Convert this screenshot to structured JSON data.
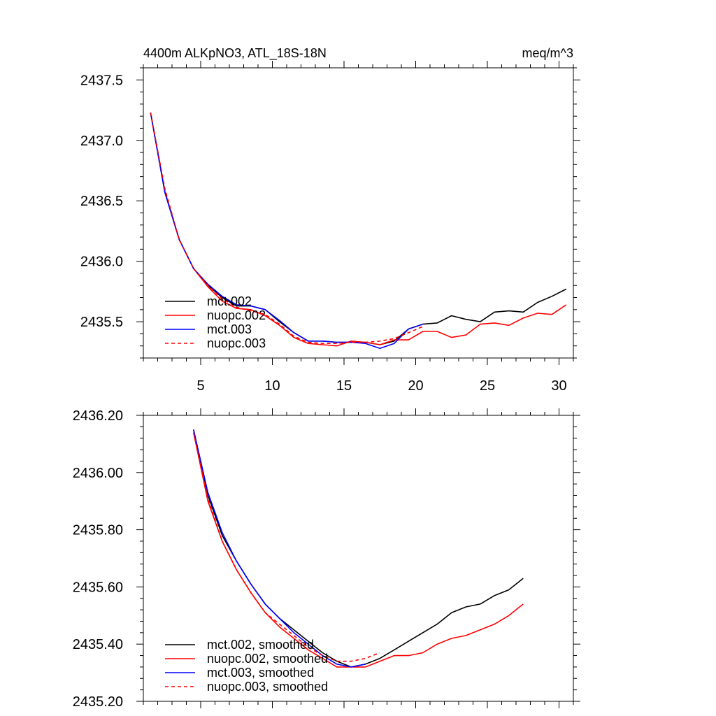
{
  "chart_data": [
    {
      "type": "line",
      "title_left": "4400m ALKpNO3, ATL_18S-18N",
      "title_right": "meq/m^3",
      "xlabel": "",
      "ylabel": "",
      "xlim": [
        1,
        31
      ],
      "ylim": [
        2435.2,
        2437.6
      ],
      "xticks": [
        5,
        10,
        15,
        20,
        25,
        30
      ],
      "xtick_labels": [
        "5",
        "10",
        "15",
        "20",
        "25",
        "30"
      ],
      "yticks": [
        2435.5,
        2436.0,
        2436.5,
        2437.0,
        2437.5
      ],
      "ytick_labels": [
        "2435.5",
        "2436.0",
        "2436.5",
        "2437.0",
        "2437.5"
      ],
      "legend_position": "bottom-left",
      "series": [
        {
          "name": "mct.002",
          "color": "#000000",
          "style": "solid",
          "x": [
            1.5,
            2.5,
            3.5,
            4.5,
            5.5,
            6.5,
            7.5,
            8.5,
            9.5,
            10.5,
            11.5,
            12.5,
            13.5,
            14.5,
            15.5,
            16.5,
            17.5,
            18.5,
            19.5,
            20.5,
            21.5,
            22.5,
            23.5,
            24.5,
            25.5,
            26.5,
            27.5,
            28.5,
            29.5,
            30.5
          ],
          "values": [
            2437.23,
            2436.57,
            2436.18,
            2435.94,
            2435.8,
            2435.7,
            2435.63,
            2435.63,
            2435.6,
            2435.5,
            2435.41,
            2435.34,
            2435.34,
            2435.33,
            2435.33,
            2435.33,
            2435.31,
            2435.34,
            2435.44,
            2435.48,
            2435.49,
            2435.55,
            2435.52,
            2435.5,
            2435.58,
            2435.59,
            2435.58,
            2435.66,
            2435.71,
            2435.77
          ]
        },
        {
          "name": "nuopc.002",
          "color": "#ff0000",
          "style": "solid",
          "x": [
            1.5,
            2.5,
            3.5,
            4.5,
            5.5,
            6.5,
            7.5,
            8.5,
            9.5,
            10.5,
            11.5,
            12.5,
            13.5,
            14.5,
            15.5,
            16.5,
            17.5,
            18.5,
            19.5,
            20.5,
            21.5,
            22.5,
            23.5,
            24.5,
            25.5,
            26.5,
            27.5,
            28.5,
            29.5,
            30.5
          ],
          "values": [
            2437.23,
            2436.58,
            2436.18,
            2435.94,
            2435.79,
            2435.67,
            2435.61,
            2435.6,
            2435.55,
            2435.47,
            2435.37,
            2435.32,
            2435.31,
            2435.3,
            2435.34,
            2435.33,
            2435.31,
            2435.35,
            2435.35,
            2435.42,
            2435.42,
            2435.37,
            2435.39,
            2435.48,
            2435.49,
            2435.47,
            2435.53,
            2435.57,
            2435.56,
            2435.64
          ]
        },
        {
          "name": "mct.003",
          "color": "#0000ff",
          "style": "solid",
          "x": [
            1.5,
            2.5,
            3.5,
            4.5,
            5.5,
            6.5,
            7.5,
            8.5,
            9.5,
            10.5,
            11.5,
            12.5,
            13.5,
            14.5,
            15.5,
            16.5,
            17.5,
            18.5,
            19.5,
            20.5
          ],
          "values": [
            2437.23,
            2436.57,
            2436.18,
            2435.94,
            2435.81,
            2435.71,
            2435.64,
            2435.63,
            2435.6,
            2435.51,
            2435.41,
            2435.34,
            2435.34,
            2435.33,
            2435.33,
            2435.32,
            2435.28,
            2435.32,
            2435.44,
            2435.48
          ]
        },
        {
          "name": "nuopc.003",
          "color": "#ff0000",
          "style": "dashed",
          "x": [
            1.5,
            2.5,
            3.5,
            4.5,
            5.5,
            6.5,
            7.5,
            8.5,
            9.5,
            10.5,
            11.5,
            12.5,
            13.5,
            14.5,
            15.5,
            16.5,
            17.5,
            18.5,
            19.5,
            20.5
          ],
          "values": [
            2437.23,
            2436.6,
            2436.18,
            2435.94,
            2435.8,
            2435.69,
            2435.62,
            2435.59,
            2435.56,
            2435.48,
            2435.38,
            2435.33,
            2435.32,
            2435.32,
            2435.33,
            2435.33,
            2435.34,
            2435.36,
            2435.41,
            2435.46
          ]
        }
      ]
    },
    {
      "type": "line",
      "title_left": "",
      "title_right": "",
      "xlabel": "",
      "ylabel": "",
      "xlim": [
        1,
        31
      ],
      "ylim": [
        2435.2,
        2436.2
      ],
      "xticks": [
        5,
        10,
        15,
        20,
        25,
        30
      ],
      "xtick_labels": [],
      "yticks": [
        2435.2,
        2435.4,
        2435.6,
        2435.8,
        2436.0,
        2436.2
      ],
      "ytick_labels": [
        "2435.20",
        "2435.40",
        "2435.60",
        "2435.80",
        "2436.00",
        "2436.20"
      ],
      "legend_position": "bottom-left",
      "series": [
        {
          "name": "mct.002, smoothed",
          "color": "#000000",
          "style": "solid",
          "x": [
            4.5,
            5.5,
            6.5,
            7.5,
            8.5,
            9.5,
            10.5,
            11.5,
            12.5,
            13.5,
            14.5,
            15.5,
            16.5,
            17.5,
            18.5,
            19.5,
            20.5,
            21.5,
            22.5,
            23.5,
            24.5,
            25.5,
            26.5,
            27.5
          ],
          "values": [
            2436.15,
            2435.92,
            2435.78,
            2435.69,
            2435.61,
            2435.54,
            2435.49,
            2435.45,
            2435.41,
            2435.37,
            2435.34,
            2435.32,
            2435.33,
            2435.35,
            2435.38,
            2435.41,
            2435.44,
            2435.47,
            2435.51,
            2435.53,
            2435.54,
            2435.57,
            2435.59,
            2435.63
          ]
        },
        {
          "name": "nuopc.002, smoothed",
          "color": "#ff0000",
          "style": "solid",
          "x": [
            4.5,
            5.5,
            6.5,
            7.5,
            8.5,
            9.5,
            10.5,
            11.5,
            12.5,
            13.5,
            14.5,
            15.5,
            16.5,
            17.5,
            18.5,
            19.5,
            20.5,
            21.5,
            22.5,
            23.5,
            24.5,
            25.5,
            26.5,
            27.5
          ],
          "values": [
            2436.14,
            2435.9,
            2435.76,
            2435.66,
            2435.58,
            2435.51,
            2435.46,
            2435.42,
            2435.38,
            2435.35,
            2435.32,
            2435.32,
            2435.32,
            2435.34,
            2435.36,
            2435.36,
            2435.37,
            2435.4,
            2435.42,
            2435.43,
            2435.45,
            2435.47,
            2435.5,
            2435.54
          ]
        },
        {
          "name": "mct.003, smoothed",
          "color": "#0000ff",
          "style": "solid",
          "x": [
            4.5,
            5.5,
            6.5,
            7.5,
            8.5,
            9.5,
            10.5,
            11.5,
            12.5,
            13.5,
            14.5,
            15.5,
            16.5
          ],
          "values": [
            2436.15,
            2435.93,
            2435.79,
            2435.69,
            2435.61,
            2435.54,
            2435.49,
            2435.44,
            2435.4,
            2435.36,
            2435.33,
            2435.32,
            2435.33
          ]
        },
        {
          "name": "nuopc.003, smoothed",
          "color": "#ff0000",
          "style": "dashed",
          "x": [
            4.5,
            5.5,
            6.5,
            7.5,
            8.5,
            9.5,
            10.5,
            11.5,
            12.5,
            13.5,
            14.5,
            15.5,
            16.5,
            17.5
          ],
          "values": [
            2436.14,
            2435.91,
            2435.76,
            2435.66,
            2435.58,
            2435.51,
            2435.47,
            2435.43,
            2435.39,
            2435.36,
            2435.34,
            2435.34,
            2435.35,
            2435.37
          ]
        }
      ]
    }
  ]
}
